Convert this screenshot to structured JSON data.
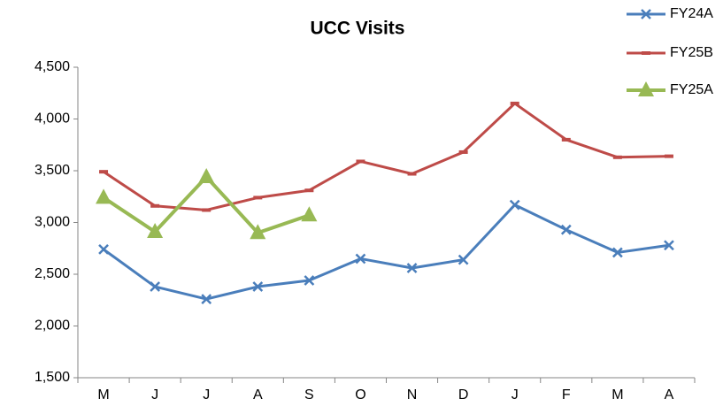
{
  "chart_data": {
    "type": "line",
    "title": "UCC Visits",
    "categories": [
      "M",
      "J",
      "J",
      "A",
      "S",
      "O",
      "N",
      "D",
      "J",
      "F",
      "M",
      "A"
    ],
    "series": [
      {
        "name": "FY24A",
        "color": "#4a7ebb",
        "marker": "x",
        "values": [
          2740,
          2380,
          2260,
          2380,
          2440,
          2650,
          2560,
          2640,
          3170,
          2930,
          2710,
          2780
        ]
      },
      {
        "name": "FY25B",
        "color": "#be4b48",
        "marker": "dash",
        "values": [
          3490,
          3160,
          3120,
          3240,
          3310,
          3590,
          3470,
          3680,
          4150,
          3800,
          3630,
          3640
        ]
      },
      {
        "name": "FY25A",
        "color": "#98b954",
        "marker": "triangle",
        "values": [
          3240,
          2910,
          3440,
          2900,
          3070,
          null,
          null,
          null,
          null,
          null,
          null,
          null
        ]
      }
    ],
    "ylim": [
      1500,
      4500
    ],
    "yticks": [
      {
        "value": 1500,
        "label": "1,500"
      },
      {
        "value": 2000,
        "label": "2,000"
      },
      {
        "value": 2500,
        "label": "2,500"
      },
      {
        "value": 3000,
        "label": "3,000"
      },
      {
        "value": 3500,
        "label": "3,500"
      },
      {
        "value": 4000,
        "label": "4,000"
      },
      {
        "value": 4500,
        "label": "4,500"
      }
    ],
    "grid": false,
    "legend": "top-right"
  }
}
